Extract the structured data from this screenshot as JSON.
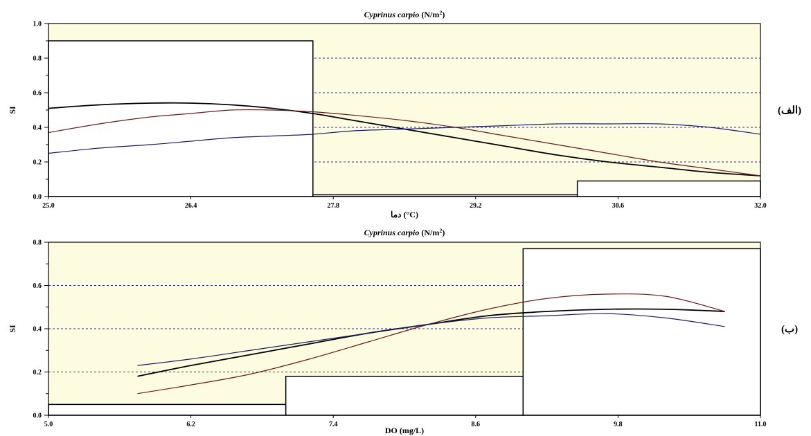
{
  "colors": {
    "plot_background": "#fdfbe0",
    "frame": "#000000",
    "grid": "#2a2a8a",
    "bar_fill": "#ffffff",
    "series_black": "#000000",
    "series_red": "#6b1a1a",
    "series_blue": "#1a1a6b"
  },
  "chart_data": [
    {
      "id": "alef",
      "type": "bar+line",
      "panel_label": "(الف)",
      "title_italic": "Cyprinus carpio",
      "title_unit": "(N/m",
      "title_sup": "2",
      "title_close": ")",
      "xlabel": "دما (°C)",
      "ylabel": "SI",
      "xlim": [
        25.0,
        32.0
      ],
      "ylim": [
        0.0,
        1.0
      ],
      "xticks": [
        "25.0",
        "26.4",
        "27.8",
        "29.2",
        "30.6",
        "32.0"
      ],
      "xtick_values": [
        25.0,
        26.4,
        27.8,
        29.2,
        30.6,
        32.0
      ],
      "yticks": [
        "0.0",
        "0.2",
        "0.4",
        "0.6",
        "0.8",
        "1.0"
      ],
      "ytick_values": [
        0.0,
        0.2,
        0.4,
        0.6,
        0.8,
        1.0
      ],
      "minor_yticks": [
        0.1,
        0.3,
        0.5,
        0.7,
        0.9
      ],
      "grid_y": [
        0.2,
        0.4,
        0.6,
        0.8
      ],
      "bars": [
        {
          "x0": 25.0,
          "x1": 27.6,
          "value": 0.9
        },
        {
          "x0": 27.6,
          "x1": 30.2,
          "value": 0.01
        },
        {
          "x0": 30.2,
          "x1": 32.0,
          "value": 0.09
        }
      ],
      "series": [
        {
          "color_key": "series_black",
          "width": 1.8,
          "x": [
            25.0,
            25.5,
            26.0,
            26.4,
            26.8,
            27.2,
            27.6,
            28.0,
            28.5,
            29.0,
            29.5,
            30.0,
            30.5,
            31.0,
            31.5,
            32.0
          ],
          "y": [
            0.51,
            0.53,
            0.54,
            0.54,
            0.53,
            0.51,
            0.48,
            0.44,
            0.39,
            0.34,
            0.29,
            0.24,
            0.2,
            0.17,
            0.14,
            0.12
          ]
        },
        {
          "color_key": "series_red",
          "width": 1.2,
          "x": [
            25.0,
            25.5,
            26.0,
            26.4,
            26.8,
            27.2,
            27.6,
            28.0,
            28.5,
            29.0,
            29.5,
            30.0,
            30.5,
            31.0,
            31.5,
            32.0
          ],
          "y": [
            0.37,
            0.42,
            0.46,
            0.48,
            0.5,
            0.5,
            0.49,
            0.47,
            0.44,
            0.4,
            0.35,
            0.3,
            0.25,
            0.2,
            0.16,
            0.12
          ]
        },
        {
          "color_key": "series_blue",
          "width": 1.2,
          "x": [
            25.0,
            25.5,
            26.0,
            26.4,
            26.8,
            27.2,
            27.6,
            28.0,
            28.5,
            29.0,
            29.5,
            30.0,
            30.5,
            31.0,
            31.5,
            32.0
          ],
          "y": [
            0.25,
            0.28,
            0.3,
            0.32,
            0.34,
            0.35,
            0.36,
            0.38,
            0.39,
            0.4,
            0.41,
            0.42,
            0.42,
            0.42,
            0.4,
            0.36
          ]
        }
      ]
    },
    {
      "id": "be",
      "type": "bar+line",
      "panel_label": "(ب)",
      "title_italic": "Cyprinus carpio",
      "title_unit": "(N/m",
      "title_sup": "2",
      "title_close": ")",
      "xlabel": "DO  (mg/L)",
      "ylabel": "SI",
      "xlim": [
        5.0,
        11.0
      ],
      "ylim": [
        0.0,
        0.8
      ],
      "xticks": [
        "5.0",
        "6.2",
        "7.4",
        "8.6",
        "9.8",
        "11.0"
      ],
      "xtick_values": [
        5.0,
        6.2,
        7.4,
        8.6,
        9.8,
        11.0
      ],
      "yticks": [
        "0.0",
        "0.2",
        "0.4",
        "0.6",
        "0.8"
      ],
      "ytick_values": [
        0.0,
        0.2,
        0.4,
        0.6,
        0.8
      ],
      "minor_yticks": [
        0.1,
        0.3,
        0.5,
        0.7
      ],
      "grid_y": [
        0.2,
        0.4,
        0.6
      ],
      "bars": [
        {
          "x0": 5.0,
          "x1": 7.0,
          "value": 0.05
        },
        {
          "x0": 7.0,
          "x1": 9.0,
          "value": 0.18
        },
        {
          "x0": 9.0,
          "x1": 11.0,
          "value": 0.77
        }
      ],
      "series": [
        {
          "color_key": "series_black",
          "width": 1.8,
          "x": [
            5.75,
            6.2,
            6.7,
            7.2,
            7.7,
            8.2,
            8.7,
            9.2,
            9.7,
            10.2,
            10.7
          ],
          "y": [
            0.18,
            0.23,
            0.28,
            0.33,
            0.38,
            0.42,
            0.46,
            0.48,
            0.49,
            0.49,
            0.48
          ]
        },
        {
          "color_key": "series_red",
          "width": 1.2,
          "x": [
            5.75,
            6.2,
            6.7,
            7.2,
            7.7,
            8.2,
            8.7,
            9.2,
            9.7,
            10.2,
            10.7
          ],
          "y": [
            0.1,
            0.14,
            0.19,
            0.26,
            0.34,
            0.42,
            0.49,
            0.54,
            0.56,
            0.55,
            0.48
          ]
        },
        {
          "color_key": "series_blue",
          "width": 1.2,
          "x": [
            5.75,
            6.2,
            6.7,
            7.2,
            7.7,
            8.2,
            8.7,
            9.2,
            9.7,
            10.2,
            10.7
          ],
          "y": [
            0.23,
            0.26,
            0.3,
            0.34,
            0.38,
            0.42,
            0.45,
            0.46,
            0.47,
            0.45,
            0.41
          ]
        }
      ]
    }
  ]
}
